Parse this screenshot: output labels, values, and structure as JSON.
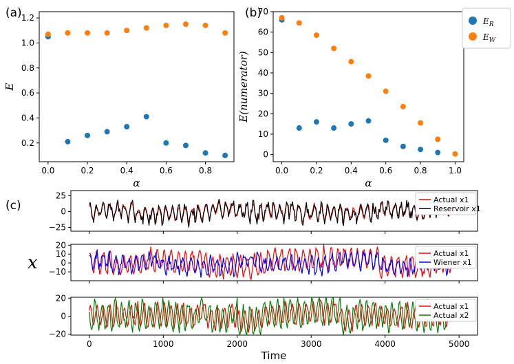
{
  "figure": {
    "panel_a_label": "(a)",
    "panel_b_label": "(b)",
    "panel_c_label": "(c)",
    "shared_ylabel": "x",
    "shared_xlabel": "Time",
    "legend_top": [
      {
        "label": "E_R",
        "color": "#1f77b4"
      },
      {
        "label": "E_W",
        "color": "#ff7f0e"
      }
    ]
  },
  "chart_data": [
    {
      "id": "a",
      "type": "scatter",
      "xlabel": "α",
      "ylabel": "E",
      "xlim": [
        -0.045,
        0.945
      ],
      "ylim": [
        0.05,
        1.25
      ],
      "xticks": [
        0.0,
        0.2,
        0.4,
        0.6,
        0.8
      ],
      "xtick_labels": [
        "0.0",
        "0.2",
        "0.4",
        "0.6",
        "0.8"
      ],
      "yticks": [
        0.2,
        0.4,
        0.6,
        0.8,
        1.0,
        1.2
      ],
      "ytick_labels": [
        "0.2",
        "0.4",
        "0.6",
        "0.8",
        "1.0",
        "1.2"
      ],
      "series": [
        {
          "name": "E_R",
          "color": "#1f77b4",
          "x": [
            0.0,
            0.1,
            0.2,
            0.3,
            0.4,
            0.5,
            0.6,
            0.7,
            0.8,
            0.9
          ],
          "y": [
            1.05,
            0.21,
            0.26,
            0.29,
            0.33,
            0.41,
            0.2,
            0.18,
            0.12,
            0.1
          ]
        },
        {
          "name": "E_W",
          "color": "#ff7f0e",
          "x": [
            0.0,
            0.1,
            0.2,
            0.3,
            0.4,
            0.5,
            0.6,
            0.7,
            0.8,
            0.9
          ],
          "y": [
            1.07,
            1.08,
            1.08,
            1.08,
            1.1,
            1.12,
            1.14,
            1.15,
            1.14,
            1.08
          ]
        }
      ]
    },
    {
      "id": "b",
      "type": "scatter",
      "xlabel": "α",
      "ylabel": "E(numerator)",
      "xlim": [
        -0.05,
        1.05
      ],
      "ylim": [
        -3.5,
        70
      ],
      "xticks": [
        0.0,
        0.2,
        0.4,
        0.6,
        0.8,
        1.0
      ],
      "xtick_labels": [
        "0.0",
        "0.2",
        "0.4",
        "0.6",
        "0.8",
        "1.0"
      ],
      "yticks": [
        0,
        10,
        20,
        30,
        40,
        50,
        60,
        70
      ],
      "ytick_labels": [
        "0",
        "10",
        "20",
        "30",
        "40",
        "50",
        "60",
        "70"
      ],
      "series": [
        {
          "name": "E_R",
          "color": "#1f77b4",
          "x": [
            0.0,
            0.1,
            0.2,
            0.3,
            0.4,
            0.5,
            0.6,
            0.7,
            0.8,
            0.9
          ],
          "y": [
            66,
            13,
            16,
            13,
            15,
            16.5,
            7,
            4,
            2.5,
            1
          ]
        },
        {
          "name": "E_W",
          "color": "#ff7f0e",
          "x": [
            0.0,
            0.1,
            0.2,
            0.3,
            0.4,
            0.5,
            0.6,
            0.7,
            0.8,
            0.9,
            1.0
          ],
          "y": [
            67,
            64.5,
            58.5,
            52,
            45.5,
            38.5,
            31,
            23.5,
            15.5,
            7.5,
            0.3
          ]
        }
      ]
    },
    {
      "id": "c1",
      "type": "line",
      "xlim": [
        -250,
        5250
      ],
      "ylim": [
        -31,
        33
      ],
      "yticks": [
        -25,
        0,
        25
      ],
      "ytick_labels": [
        "−25",
        "0",
        "25"
      ],
      "xticks": [
        0,
        1000,
        2000,
        3000,
        4000,
        5000
      ],
      "xtick_labels": [],
      "series": [
        {
          "name": "Actual x1",
          "color": "#ff0000",
          "seed": 11,
          "amp": 12,
          "noise": 0.15
        },
        {
          "name": "Reservoir x1",
          "color": "#000000",
          "seed": 11,
          "amp": 13,
          "noise": 0.55
        }
      ]
    },
    {
      "id": "c2",
      "type": "line",
      "xlim": [
        -250,
        5250
      ],
      "ylim": [
        -20,
        21
      ],
      "yticks": [
        -10,
        0,
        10,
        20
      ],
      "ytick_labels": [
        "−10",
        "0",
        "10",
        "20"
      ],
      "extra_ytick_labels": [
        "20",
        "10",
        "0",
        "−10"
      ],
      "xticks": [
        0,
        1000,
        2000,
        3000,
        4000,
        5000
      ],
      "xtick_labels": [],
      "series": [
        {
          "name": "Actual x1",
          "color": "#ff0000",
          "seed": 23,
          "amp": 13,
          "noise": 0.15
        },
        {
          "name": "Wiener x1",
          "color": "#0000ff",
          "seed": 57,
          "amp": 9,
          "noise": 0.5
        }
      ]
    },
    {
      "id": "c3",
      "type": "line",
      "xlim": [
        -250,
        5250
      ],
      "ylim": [
        -21,
        21
      ],
      "yticks": [
        -20,
        0,
        20
      ],
      "ytick_labels": [
        "−20",
        "0",
        "20"
      ],
      "xticks": [
        0,
        1000,
        2000,
        3000,
        4000,
        5000
      ],
      "xtick_labels": [
        "0",
        "1000",
        "2000",
        "3000",
        "4000",
        "5000"
      ],
      "series": [
        {
          "name": "Actual x1",
          "color": "#ff0000",
          "seed": 31,
          "amp": 13,
          "noise": 0.15
        },
        {
          "name": "Actual x2",
          "color": "#008000",
          "seed": 31,
          "amp": 17,
          "noise": 0.15,
          "phase": 1
        }
      ]
    }
  ]
}
